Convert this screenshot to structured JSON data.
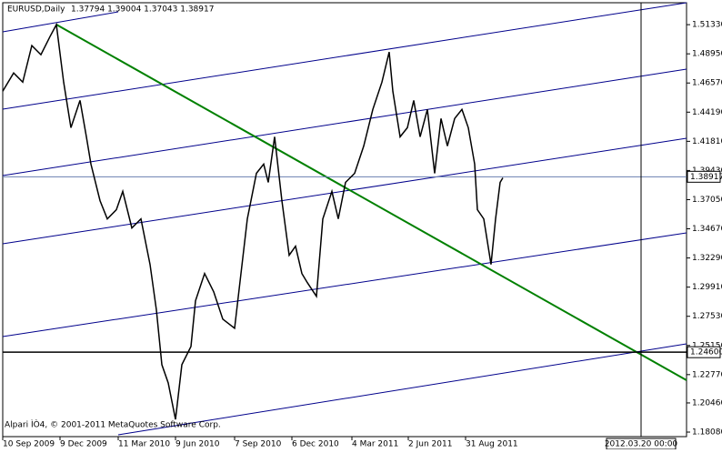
{
  "chart_data": {
    "type": "line",
    "title": "EURUSD,Daily",
    "subtitle": "1.37794 1.39004 1.37043 1.38917",
    "annotation": "Alpari ÌÒ4, © 2001-2011 MetaQuotes Software Corp.",
    "color": "#000000",
    "x": [
      0,
      12,
      22,
      32,
      42,
      52,
      59,
      67,
      75,
      85,
      92,
      97,
      107,
      115,
      125,
      132,
      142,
      152,
      162,
      169,
      175,
      182,
      190,
      197,
      207,
      212,
      222,
      232,
      242,
      255,
      262,
      269,
      279,
      287,
      292,
      299,
      307,
      315,
      322,
      329,
      335,
      345,
      352,
      362,
      369,
      377,
      387,
      397,
      407,
      417,
      425,
      429,
      437,
      445,
      452,
      459,
      467,
      475,
      482,
      489,
      497,
      505,
      512,
      519,
      522,
      529,
      537,
      542,
      547,
      550
    ],
    "values": [
      1.459,
      1.4739,
      1.4664,
      1.4962,
      1.4888,
      1.5036,
      1.5133,
      1.4664,
      1.4292,
      1.4515,
      1.4218,
      1.3995,
      1.3697,
      1.3548,
      1.3623,
      1.3772,
      1.3474,
      1.3548,
      1.3176,
      1.2804,
      1.2358,
      1.2209,
      1.1911,
      1.2358,
      1.2507,
      1.2879,
      1.3102,
      1.2953,
      1.273,
      1.2655,
      1.3102,
      1.3548,
      1.392,
      1.3995,
      1.3846,
      1.4218,
      1.3697,
      1.3251,
      1.3325,
      1.3102,
      1.3028,
      1.2916,
      1.3548,
      1.3772,
      1.3548,
      1.3846,
      1.392,
      1.4143,
      1.4441,
      1.4664,
      1.491,
      1.459,
      1.4218,
      1.4292,
      1.4515,
      1.4218,
      1.4441,
      1.392,
      1.4367,
      1.4143,
      1.4367,
      1.4441,
      1.4292,
      1.3995,
      1.3623,
      1.3548,
      1.3176,
      1.3548,
      1.3846,
      1.3883
    ],
    "xlim": [
      0,
      752
    ],
    "xticks": [
      {
        "value": 0,
        "label": "10 Sep 2009"
      },
      {
        "value": 63,
        "label": "9 Dec 2009"
      },
      {
        "value": 127,
        "label": "11 Mar 2010"
      },
      {
        "value": 190,
        "label": "9 Jun 2010"
      },
      {
        "value": 255,
        "label": "7 Sep 2010"
      },
      {
        "value": 318,
        "label": "6 Dec 2010"
      },
      {
        "value": 384,
        "label": "4 Mar 2011"
      },
      {
        "value": 446,
        "label": "2 Jun 2011"
      },
      {
        "value": 509,
        "label": "31 Aug 2011"
      }
    ],
    "ylim": [
      1.1771,
      1.5312
    ],
    "yticks": [
      {
        "value": 1.5133,
        "label": "1.51330"
      },
      {
        "value": 1.4895,
        "label": "1.48950"
      },
      {
        "value": 1.4657,
        "label": "1.46570"
      },
      {
        "value": 1.4419,
        "label": "1.44190"
      },
      {
        "value": 1.4181,
        "label": "1.41810"
      },
      {
        "value": 1.3943,
        "label": "1.39430"
      },
      {
        "value": 1.3705,
        "label": "1.37050"
      },
      {
        "value": 1.3467,
        "label": "1.34670"
      },
      {
        "value": 1.3229,
        "label": "1.32290"
      },
      {
        "value": 1.2991,
        "label": "1.29910"
      },
      {
        "value": 1.2753,
        "label": "1.27530"
      },
      {
        "value": 1.2515,
        "label": "1.25150"
      },
      {
        "value": 1.2277,
        "label": "1.22770"
      },
      {
        "value": 1.2046,
        "label": "1.20460"
      },
      {
        "value": 1.1808,
        "label": "1.18080"
      }
    ],
    "price_line": 1.38917,
    "hline": {
      "value": 1.246,
      "label": "1.24600"
    },
    "vline": {
      "value": 702,
      "label": "2012.03.20 00:00"
    }
  }
}
